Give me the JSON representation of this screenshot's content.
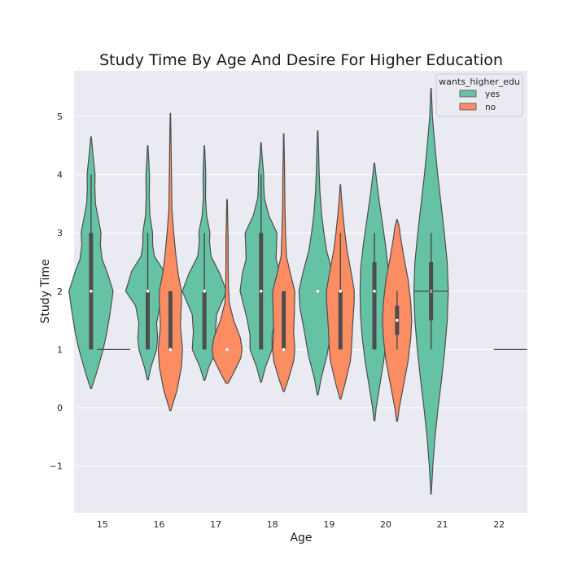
{
  "chart_data": {
    "type": "violin",
    "title": "Study Time By Age And Desire For Higher Education",
    "xlabel": "Age",
    "ylabel": "Study Time",
    "categories": [
      "15",
      "16",
      "17",
      "18",
      "19",
      "20",
      "21",
      "22"
    ],
    "yticks": [
      "−1",
      "0",
      "1",
      "2",
      "3",
      "4",
      "5"
    ],
    "ylim": [
      -1.8,
      5.5
    ],
    "grid": true,
    "legend": {
      "title": "wants_higher_edu",
      "placement": "top-right"
    },
    "series": [
      {
        "name": "yes",
        "color": "#66c2a5",
        "groups": [
          {
            "age": "15",
            "min": 0.33,
            "max": 4.65,
            "q1": 1,
            "median": 2,
            "q3": 3,
            "whisker_low": 1,
            "whisker_high": 4,
            "hw": 0.42,
            "profile": [
              [
                0.33,
                0.02
              ],
              [
                0.6,
                0.25
              ],
              [
                1.0,
                0.55
              ],
              [
                1.3,
                0.72
              ],
              [
                1.6,
                0.85
              ],
              [
                2.0,
                1.0
              ],
              [
                2.3,
                0.75
              ],
              [
                2.55,
                0.5
              ],
              [
                2.8,
                0.42
              ],
              [
                3.0,
                0.45
              ],
              [
                3.3,
                0.3
              ],
              [
                3.5,
                0.2
              ],
              [
                3.8,
                0.17
              ],
              [
                4.0,
                0.18
              ],
              [
                4.3,
                0.1
              ],
              [
                4.65,
                0.01
              ]
            ]
          },
          {
            "age": "16",
            "min": 0.48,
            "max": 4.5,
            "q1": 1,
            "median": 2,
            "q3": 2,
            "whisker_low": 1,
            "whisker_high": 3,
            "hw": 0.42,
            "profile": [
              [
                0.48,
                0.02
              ],
              [
                0.7,
                0.15
              ],
              [
                1.0,
                0.4
              ],
              [
                1.2,
                0.45
              ],
              [
                1.45,
                0.4
              ],
              [
                1.75,
                0.55
              ],
              [
                2.0,
                1.0
              ],
              [
                2.35,
                0.72
              ],
              [
                2.6,
                0.3
              ],
              [
                2.8,
                0.22
              ],
              [
                3.0,
                0.22
              ],
              [
                3.3,
                0.1
              ],
              [
                3.6,
                0.07
              ],
              [
                4.0,
                0.08
              ],
              [
                4.2,
                0.05
              ],
              [
                4.5,
                0.01
              ]
            ]
          },
          {
            "age": "17",
            "min": 0.47,
            "max": 4.5,
            "q1": 1,
            "median": 2,
            "q3": 2,
            "whisker_low": 1,
            "whisker_high": 3,
            "hw": 0.42,
            "profile": [
              [
                0.47,
                0.02
              ],
              [
                0.7,
                0.2
              ],
              [
                1.0,
                0.55
              ],
              [
                1.3,
                0.5
              ],
              [
                1.6,
                0.55
              ],
              [
                2.0,
                1.0
              ],
              [
                2.3,
                0.7
              ],
              [
                2.6,
                0.3
              ],
              [
                2.85,
                0.23
              ],
              [
                3.0,
                0.25
              ],
              [
                3.3,
                0.1
              ],
              [
                3.6,
                0.05
              ],
              [
                4.0,
                0.06
              ],
              [
                4.3,
                0.03
              ],
              [
                4.5,
                0.01
              ]
            ]
          },
          {
            "age": "18",
            "min": 0.44,
            "max": 4.55,
            "q1": 1,
            "median": 2,
            "q3": 3,
            "whisker_low": 1,
            "whisker_high": 4,
            "hw": 0.42,
            "profile": [
              [
                0.44,
                0.02
              ],
              [
                0.7,
                0.2
              ],
              [
                1.0,
                0.5
              ],
              [
                1.25,
                0.5
              ],
              [
                1.55,
                0.65
              ],
              [
                2.0,
                0.95
              ],
              [
                2.3,
                0.85
              ],
              [
                2.55,
                0.68
              ],
              [
                2.8,
                0.7
              ],
              [
                3.0,
                0.72
              ],
              [
                3.3,
                0.35
              ],
              [
                3.6,
                0.15
              ],
              [
                3.85,
                0.12
              ],
              [
                4.0,
                0.12
              ],
              [
                4.3,
                0.05
              ],
              [
                4.55,
                0.01
              ]
            ]
          },
          {
            "age": "19",
            "min": 0.22,
            "max": 4.75,
            "q1": 2,
            "median": 2,
            "q3": 2,
            "whisker_low": 2,
            "whisker_high": 2,
            "hw": 0.42,
            "profile": [
              [
                0.22,
                0.02
              ],
              [
                0.5,
                0.15
              ],
              [
                0.9,
                0.42
              ],
              [
                1.3,
                0.6
              ],
              [
                1.7,
                0.8
              ],
              [
                2.0,
                0.85
              ],
              [
                2.3,
                0.68
              ],
              [
                2.7,
                0.4
              ],
              [
                3.0,
                0.28
              ],
              [
                3.3,
                0.18
              ],
              [
                3.7,
                0.1
              ],
              [
                4.1,
                0.06
              ],
              [
                4.4,
                0.04
              ],
              [
                4.75,
                0.01
              ]
            ]
          },
          {
            "age": "20",
            "min": -0.22,
            "max": 4.2,
            "q1": 1,
            "median": 2,
            "q3": 2.5,
            "whisker_low": 1,
            "whisker_high": 3,
            "hw": 0.42,
            "profile": [
              [
                -0.22,
                0.02
              ],
              [
                0.0,
                0.08
              ],
              [
                0.4,
                0.25
              ],
              [
                0.8,
                0.42
              ],
              [
                1.2,
                0.55
              ],
              [
                1.6,
                0.63
              ],
              [
                2.0,
                0.65
              ],
              [
                2.4,
                0.62
              ],
              [
                2.8,
                0.5
              ],
              [
                3.2,
                0.35
              ],
              [
                3.6,
                0.2
              ],
              [
                3.9,
                0.1
              ],
              [
                4.2,
                0.01
              ]
            ]
          },
          {
            "age": "21",
            "min": -1.48,
            "max": 5.48,
            "q1": 1.5,
            "median": 2,
            "q3": 2.5,
            "whisker_low": 1,
            "whisker_high": 3,
            "hw": 0.42,
            "profile": [
              [
                -1.48,
                0.01
              ],
              [
                -1.0,
                0.08
              ],
              [
                -0.5,
                0.18
              ],
              [
                0.0,
                0.32
              ],
              [
                0.5,
                0.48
              ],
              [
                1.0,
                0.62
              ],
              [
                1.5,
                0.73
              ],
              [
                2.0,
                0.78
              ],
              [
                2.5,
                0.73
              ],
              [
                3.0,
                0.6
              ],
              [
                3.5,
                0.45
              ],
              [
                4.0,
                0.3
              ],
              [
                4.5,
                0.17
              ],
              [
                5.0,
                0.06
              ],
              [
                5.48,
                0.01
              ]
            ]
          }
        ],
        "flat": [
          {
            "age": "21",
            "value": 2
          }
        ]
      },
      {
        "name": "no",
        "color": "#fc8d62",
        "groups": [
          {
            "age": "16",
            "min": -0.05,
            "max": 5.05,
            "q1": 1,
            "median": 1,
            "q3": 2,
            "whisker_low": 1,
            "whisker_high": 2,
            "hw": 0.42,
            "profile": [
              [
                -0.05,
                0.02
              ],
              [
                0.3,
                0.3
              ],
              [
                0.7,
                0.5
              ],
              [
                1.0,
                0.55
              ],
              [
                1.4,
                0.45
              ],
              [
                1.8,
                0.5
              ],
              [
                2.0,
                0.5
              ],
              [
                2.3,
                0.35
              ],
              [
                2.6,
                0.25
              ],
              [
                3.0,
                0.15
              ],
              [
                3.4,
                0.07
              ],
              [
                4.0,
                0.05
              ],
              [
                4.5,
                0.03
              ],
              [
                5.05,
                0.01
              ]
            ]
          },
          {
            "age": "17",
            "min": 0.42,
            "max": 3.57,
            "q1": 1,
            "median": 1,
            "q3": 1,
            "whisker_low": 1,
            "whisker_high": 1,
            "hw": 0.42,
            "profile": [
              [
                0.42,
                0.05
              ],
              [
                0.6,
                0.3
              ],
              [
                0.85,
                0.62
              ],
              [
                1.0,
                0.68
              ],
              [
                1.2,
                0.6
              ],
              [
                1.5,
                0.3
              ],
              [
                1.8,
                0.1
              ],
              [
                2.1,
                0.06
              ],
              [
                2.5,
                0.05
              ],
              [
                2.9,
                0.05
              ],
              [
                3.2,
                0.03
              ],
              [
                3.57,
                0.01
              ]
            ]
          },
          {
            "age": "18",
            "min": 0.28,
            "max": 4.7,
            "q1": 1,
            "median": 1,
            "q3": 2,
            "whisker_low": 1,
            "whisker_high": 2,
            "hw": 0.42,
            "profile": [
              [
                0.28,
                0.02
              ],
              [
                0.5,
                0.22
              ],
              [
                0.8,
                0.45
              ],
              [
                1.0,
                0.5
              ],
              [
                1.3,
                0.45
              ],
              [
                1.6,
                0.48
              ],
              [
                2.0,
                0.5
              ],
              [
                2.3,
                0.3
              ],
              [
                2.6,
                0.12
              ],
              [
                3.0,
                0.08
              ],
              [
                3.5,
                0.05
              ],
              [
                4.0,
                0.04
              ],
              [
                4.4,
                0.02
              ],
              [
                4.7,
                0.01
              ]
            ]
          },
          {
            "age": "19",
            "min": 0.15,
            "max": 3.83,
            "q1": 1,
            "median": 2,
            "q3": 2,
            "whisker_low": 1,
            "whisker_high": 3,
            "hw": 0.42,
            "profile": [
              [
                0.15,
                0.02
              ],
              [
                0.4,
                0.2
              ],
              [
                0.8,
                0.45
              ],
              [
                1.0,
                0.5
              ],
              [
                1.4,
                0.55
              ],
              [
                1.8,
                0.62
              ],
              [
                2.0,
                0.63
              ],
              [
                2.3,
                0.5
              ],
              [
                2.7,
                0.3
              ],
              [
                3.0,
                0.2
              ],
              [
                3.3,
                0.12
              ],
              [
                3.6,
                0.05
              ],
              [
                3.83,
                0.01
              ]
            ]
          },
          {
            "age": "20",
            "min": -0.23,
            "max": 3.23,
            "q1": 1.25,
            "median": 1.5,
            "q3": 1.75,
            "whisker_low": 1,
            "whisker_high": 2,
            "hw": 0.42,
            "profile": [
              [
                -0.23,
                0.02
              ],
              [
                0.0,
                0.1
              ],
              [
                0.4,
                0.3
              ],
              [
                0.8,
                0.5
              ],
              [
                1.2,
                0.62
              ],
              [
                1.5,
                0.66
              ],
              [
                1.8,
                0.62
              ],
              [
                2.2,
                0.5
              ],
              [
                2.6,
                0.3
              ],
              [
                2.95,
                0.15
              ],
              [
                3.1,
                0.1
              ],
              [
                3.23,
                0.01
              ]
            ]
          }
        ],
        "flat": [
          {
            "age": "15",
            "value": 1
          },
          {
            "age": "22",
            "value": 1
          }
        ]
      }
    ]
  }
}
